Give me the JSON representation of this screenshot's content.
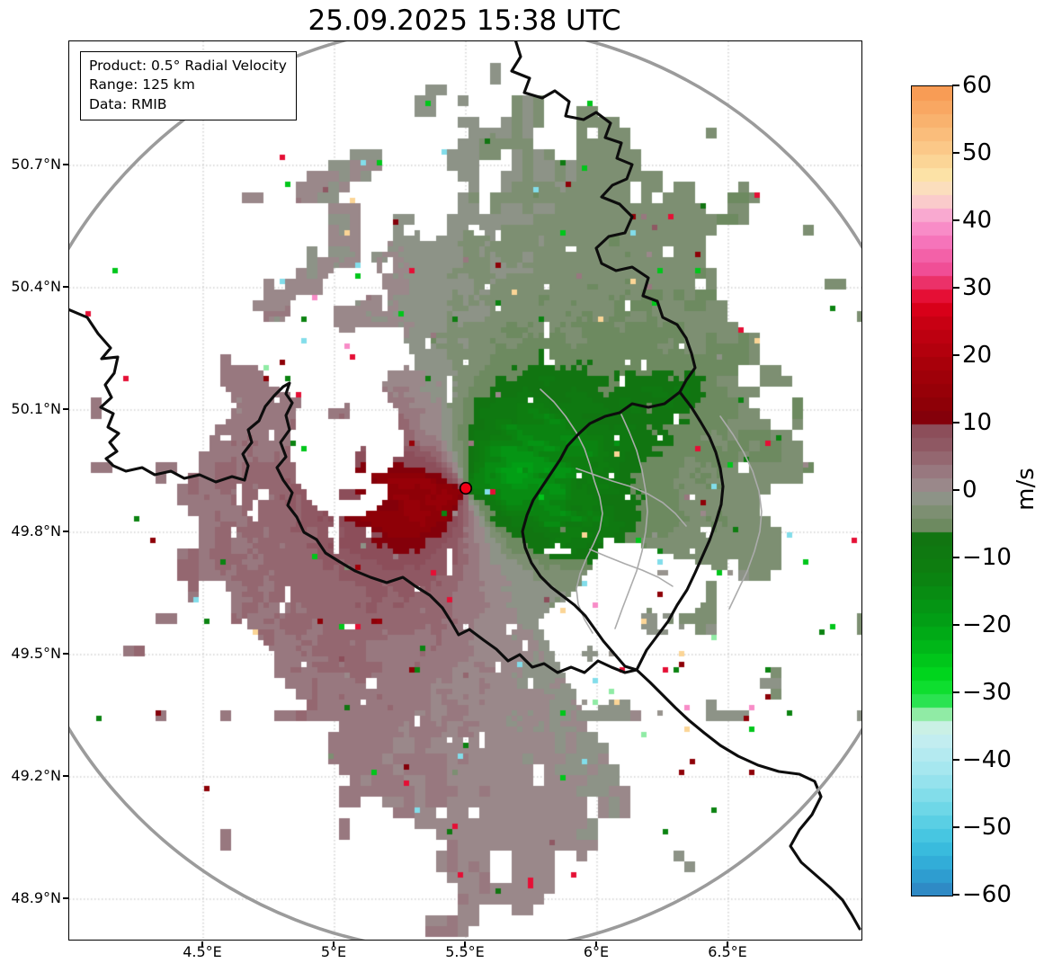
{
  "title": "25.09.2025 15:38 UTC",
  "info_box": {
    "product": "Product: 0.5° Radial Velocity",
    "range": "Range: 125 km",
    "data_source": "Data: RMIB"
  },
  "x_axis": {
    "tick_labels": [
      "4.5°E",
      "5°E",
      "5.5°E",
      "6°E",
      "6.5°E"
    ]
  },
  "y_axis": {
    "tick_labels": [
      "50.7°N",
      "50.4°N",
      "50.1°N",
      "49.8°N",
      "49.5°N",
      "49.2°N",
      "48.9°N"
    ]
  },
  "colorbar": {
    "unit": "m/s",
    "tick_labels": [
      "60",
      "50",
      "40",
      "30",
      "20",
      "10",
      "0",
      "−10",
      "−20",
      "−30",
      "−40",
      "−50",
      "−60"
    ],
    "vmin": -60,
    "vmax": 60
  },
  "map": {
    "range_ring_color": "#9B9B9B",
    "country_border_color": "#0d0d0d",
    "province_border_color": "#ABABAB",
    "radar_dot_color": "#f10016",
    "gridline_color": "#bbbbbb"
  },
  "chart_data": {
    "type": "heatmap",
    "title": "25.09.2025 15:38 UTC",
    "product": "0.5° Radial Velocity",
    "range_km": 125,
    "source": "RMIB",
    "unit": "m/s",
    "radar_site": {
      "lon_deg_e": 5.5,
      "lat_deg_n": 49.91
    },
    "x_ticks_lon_e": [
      4.5,
      5.0,
      5.5,
      6.0,
      6.5
    ],
    "y_ticks_lat_n": [
      50.7,
      50.4,
      50.1,
      49.8,
      49.5,
      49.2,
      48.9
    ],
    "lon_range_e": [
      3.99,
      7.01
    ],
    "lat_range_n": [
      48.8,
      51.0
    ],
    "value_range": [
      -60,
      60
    ],
    "value_step_ms": 2,
    "grid": "dotted",
    "legend_position": "right-colorbar",
    "colormap": [
      [
        60,
        "#F8964F"
      ],
      [
        56,
        "#F9AC68"
      ],
      [
        50,
        "#FBCE8E"
      ],
      [
        47,
        "#FCE2A6"
      ],
      [
        44,
        "#FBDCC8"
      ],
      [
        41,
        "#F9A9D0"
      ],
      [
        38,
        "#F77EC3"
      ],
      [
        33,
        "#F04E96"
      ],
      [
        30,
        "#E92253"
      ],
      [
        28.2,
        "#E2001D"
      ],
      [
        25,
        "#C80013"
      ],
      [
        18,
        "#A30009"
      ],
      [
        12,
        "#8A0007"
      ],
      [
        10.1,
        "#7F000C"
      ],
      [
        9.9,
        "#8A4A56"
      ],
      [
        6,
        "#915D68"
      ],
      [
        4,
        "#967078"
      ],
      [
        2,
        "#998086"
      ],
      [
        0.7,
        "#9A8A8B"
      ],
      [
        -0.7,
        "#90948A"
      ],
      [
        -2,
        "#85917B"
      ],
      [
        -4,
        "#758C69"
      ],
      [
        -6,
        "#648757"
      ],
      [
        -6.8,
        "#557F45"
      ],
      [
        -7,
        "#117511"
      ],
      [
        -12,
        "#0D7F10"
      ],
      [
        -16,
        "#069013"
      ],
      [
        -20,
        "#00A315"
      ],
      [
        -24,
        "#00BE19"
      ],
      [
        -28,
        "#00DC1E"
      ],
      [
        -31,
        "#2AE351"
      ],
      [
        -33,
        "#90EBA5"
      ],
      [
        -34.5,
        "#CBF0DF"
      ],
      [
        -36,
        "#C9EFF0"
      ],
      [
        -42,
        "#9FE5EF"
      ],
      [
        -47,
        "#6ED7E7"
      ],
      [
        -52,
        "#3DC2DF"
      ],
      [
        -56,
        "#2EA6D5"
      ],
      [
        -60,
        "#2F80C0"
      ]
    ],
    "regions": [
      {
        "area": "west and southwest of radar",
        "velocity_ms": "+2 to +12",
        "appearance": "mauve to dark-red pixels, flow away from radar"
      },
      {
        "area": "north and east of radar",
        "velocity_ms": "-1 to -6",
        "appearance": "gray-green pixels, flow toward radar"
      },
      {
        "area": "just east of radar site",
        "velocity_ms": "-8 to -18",
        "appearance": "dark green velocity maximum"
      },
      {
        "area": "southeast sector",
        "velocity_ms": "mixed outliers",
        "appearance": "scattered red, green, cyan, tan and gray speckles"
      }
    ]
  }
}
